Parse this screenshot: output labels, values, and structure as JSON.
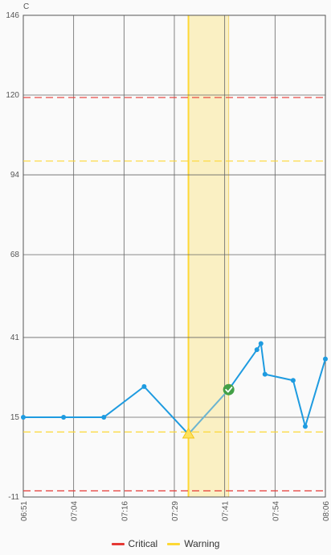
{
  "chart_data": {
    "type": "line",
    "y_unit": "C",
    "yticks": [
      146,
      120,
      94,
      68,
      41,
      15,
      -11
    ],
    "ylim": [
      -11,
      146
    ],
    "xtick_labels": [
      "06:51",
      "07:04",
      "07:16",
      "07:29",
      "07:41",
      "07:54",
      "08:06"
    ],
    "xlim": [
      "06:51",
      "08:06"
    ],
    "grid": true,
    "thresholds": [
      {
        "name": "Critical",
        "value": 119.2,
        "color": "#e53935",
        "style": "dashed"
      },
      {
        "name": "Critical",
        "value": -9,
        "color": "#e53935",
        "style": "dashed"
      },
      {
        "name": "Warning",
        "value": 98.5,
        "color": "#fdd835",
        "style": "dashed"
      },
      {
        "name": "Warning",
        "value": 10.2,
        "color": "#fdd835",
        "style": "dashed"
      }
    ],
    "highlight_band": {
      "from": "07:32",
      "to": "07:42",
      "color": "#fdd835"
    },
    "series": [
      {
        "color": "#1e9be0",
        "points": [
          {
            "t": "06:51",
            "y": 15
          },
          {
            "t": "07:01",
            "y": 15
          },
          {
            "t": "07:11",
            "y": 15
          },
          {
            "t": "07:21",
            "y": 25
          },
          {
            "t": "07:32",
            "y": 9.5,
            "marker": "warning-triangle"
          },
          {
            "t": "07:42",
            "y": 24,
            "marker": "check-circle"
          },
          {
            "t": "07:49",
            "y": 37
          },
          {
            "t": "07:50",
            "y": 39
          },
          {
            "t": "07:51",
            "y": 29
          },
          {
            "t": "07:58",
            "y": 27
          },
          {
            "t": "08:01",
            "y": 12
          },
          {
            "t": "08:06",
            "y": 34
          }
        ]
      }
    ],
    "legend": [
      {
        "label": "Critical",
        "color": "#e53935"
      },
      {
        "label": "Warning",
        "color": "#fdd835"
      }
    ],
    "legend_position": "bottom-center"
  }
}
